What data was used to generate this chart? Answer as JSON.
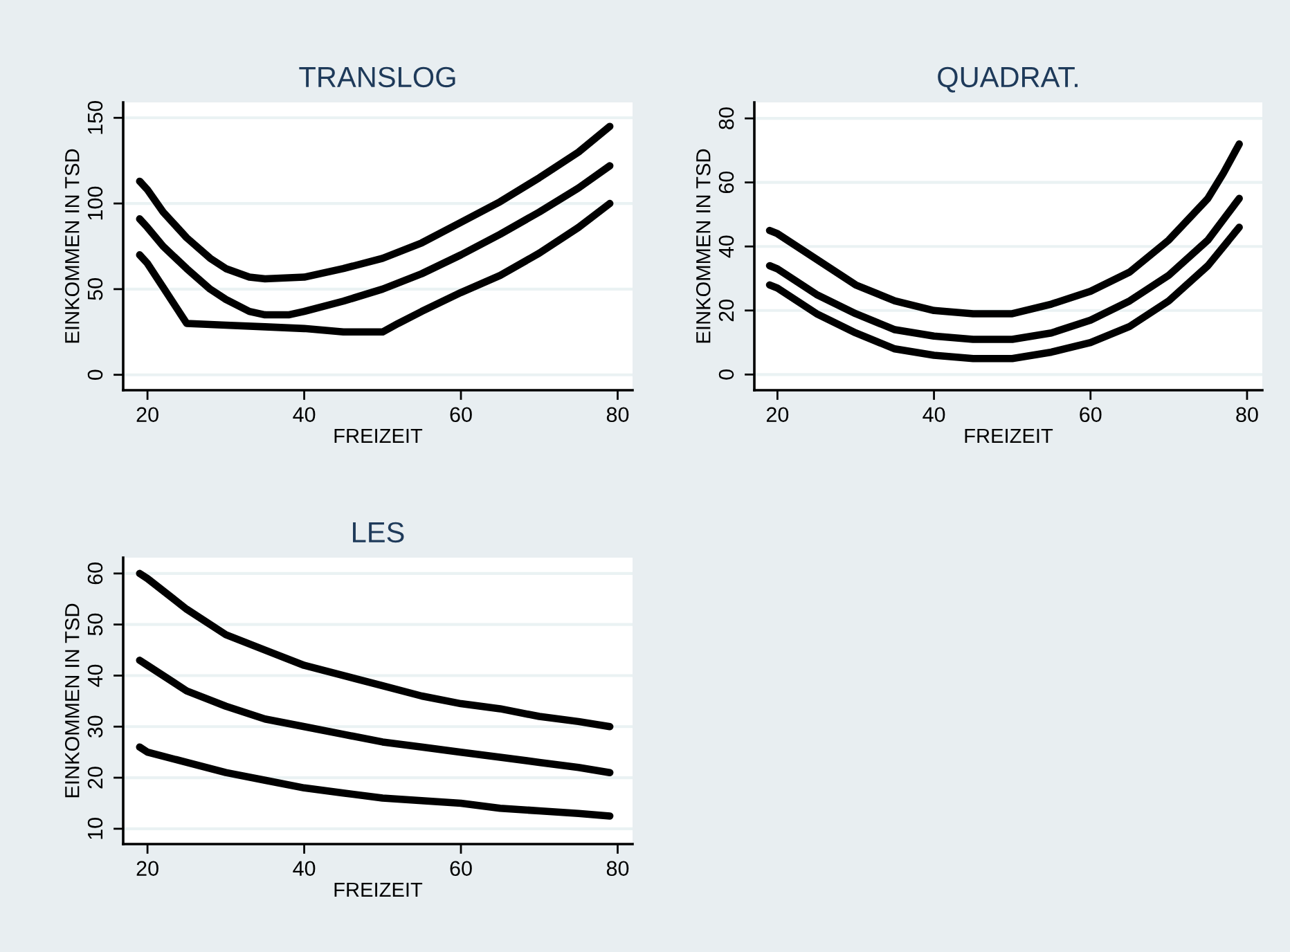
{
  "chart_data": [
    {
      "type": "line",
      "title": "TRANSLOG",
      "xlabel": "FREIZEIT",
      "ylabel": "EINKOMMEN IN TSD",
      "xlim": [
        16.9,
        81.9
      ],
      "ylim": [
        -9,
        159
      ],
      "xticks": [
        20,
        40,
        60,
        80
      ],
      "yticks": [
        0,
        50,
        100,
        150
      ],
      "grid": "y",
      "marker": "none",
      "line_style": "solid",
      "series": [
        {
          "color": "#000000",
          "x": [
            19,
            20,
            22,
            25,
            28,
            30,
            33,
            35,
            40,
            45,
            50,
            55,
            60,
            65,
            70,
            75,
            79
          ],
          "values": [
            113,
            108,
            95,
            80,
            68,
            62,
            57,
            56,
            57,
            62,
            68,
            77,
            89,
            101,
            115,
            130,
            145
          ]
        },
        {
          "color": "#000000",
          "x": [
            19,
            20,
            22,
            25,
            28,
            30,
            33,
            35,
            38,
            40,
            45,
            50,
            55,
            60,
            65,
            70,
            75,
            79
          ],
          "values": [
            91,
            86,
            75,
            62,
            50,
            44,
            37,
            35,
            35,
            37,
            43,
            50,
            59,
            70,
            82,
            95,
            109,
            122
          ]
        },
        {
          "color": "#000000",
          "x": [
            19,
            20,
            22,
            25,
            30,
            35,
            40,
            45,
            50,
            52,
            55,
            60,
            65,
            70,
            75,
            79
          ],
          "values": [
            70,
            65,
            51,
            30,
            29,
            28,
            27,
            25,
            25,
            30,
            37,
            48,
            58,
            71,
            86,
            100
          ]
        }
      ]
    },
    {
      "type": "line",
      "title": "QUADRAT.",
      "xlabel": "FREIZEIT",
      "ylabel": "EINKOMMEN IN TSD",
      "xlim": [
        17.05,
        81.95
      ],
      "ylim": [
        -4.9,
        85
      ],
      "xticks": [
        20,
        40,
        60,
        80
      ],
      "yticks": [
        0,
        20,
        40,
        60,
        80
      ],
      "grid": "y",
      "marker": "none",
      "line_style": "solid",
      "series": [
        {
          "color": "#000000",
          "x": [
            19,
            20,
            25,
            30,
            35,
            40,
            45,
            50,
            55,
            60,
            65,
            70,
            75,
            77,
            79
          ],
          "values": [
            45,
            44,
            36,
            28,
            23,
            20,
            19,
            19,
            22,
            26,
            32,
            42,
            55,
            63,
            72
          ]
        },
        {
          "color": "#000000",
          "x": [
            19,
            20,
            25,
            30,
            35,
            40,
            45,
            50,
            55,
            60,
            65,
            70,
            75,
            79
          ],
          "values": [
            34,
            33,
            25,
            19,
            14,
            12,
            11,
            11,
            13,
            17,
            23,
            31,
            42,
            55
          ]
        },
        {
          "color": "#000000",
          "x": [
            19,
            20,
            25,
            30,
            35,
            40,
            45,
            50,
            55,
            60,
            65,
            70,
            75,
            79
          ],
          "values": [
            28,
            27,
            19,
            13,
            8,
            6,
            5,
            5,
            7,
            10,
            15,
            23,
            34,
            46
          ]
        }
      ]
    },
    {
      "type": "line",
      "title": "LES",
      "xlabel": "FREIZEIT",
      "ylabel": "EINKOMMEN IN TSD",
      "xlim": [
        16.9,
        81.9
      ],
      "ylim": [
        7,
        63.1
      ],
      "xticks": [
        20,
        40,
        60,
        80
      ],
      "yticks": [
        10,
        20,
        30,
        40,
        50,
        60
      ],
      "grid": "y",
      "marker": "none",
      "line_style": "solid",
      "series": [
        {
          "color": "#000000",
          "x": [
            19,
            20,
            25,
            30,
            35,
            40,
            45,
            50,
            55,
            60,
            65,
            70,
            75,
            79
          ],
          "values": [
            60,
            59,
            53,
            48,
            45,
            42,
            40,
            38,
            36,
            34.5,
            33.5,
            32,
            31,
            30
          ]
        },
        {
          "color": "#000000",
          "x": [
            19,
            20,
            25,
            30,
            35,
            40,
            45,
            50,
            55,
            60,
            65,
            70,
            75,
            79
          ],
          "values": [
            43,
            42,
            37,
            34,
            31.5,
            30,
            28.5,
            27,
            26,
            25,
            24,
            23,
            22,
            21
          ]
        },
        {
          "color": "#000000",
          "x": [
            19,
            20,
            25,
            30,
            35,
            40,
            45,
            50,
            55,
            60,
            65,
            70,
            75,
            79
          ],
          "values": [
            26,
            25,
            23,
            21,
            19.5,
            18,
            17,
            16,
            15.5,
            15,
            14,
            13.5,
            13,
            12.5
          ]
        }
      ]
    }
  ]
}
